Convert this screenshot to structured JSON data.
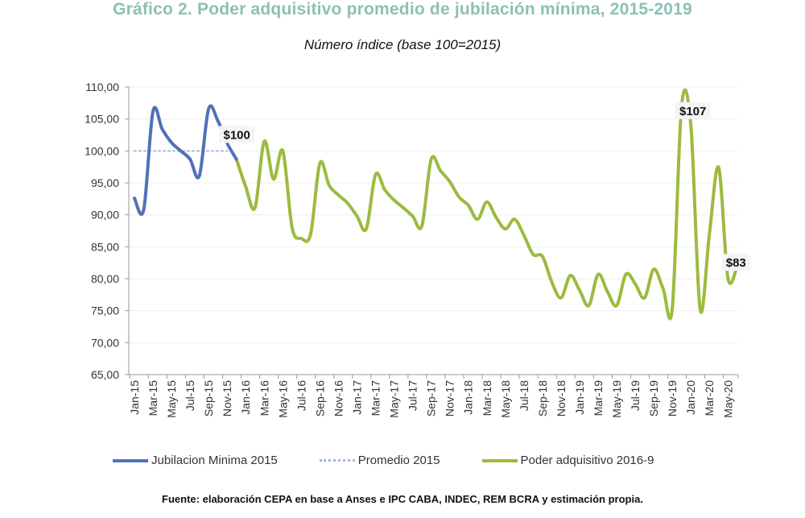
{
  "title": "Gráfico 2. Poder adquisitivo promedio de jubilación mínima, 2015-2019",
  "subtitle": "Número índice (base 100=2015)",
  "source": "Fuente: elaboración CEPA en base a Anses e IPC CABA, INDEC, REM BCRA y estimación propia.",
  "chart_data": {
    "type": "line",
    "ylim": [
      65,
      110
    ],
    "yticks": [
      "65,00",
      "70,00",
      "75,00",
      "80,00",
      "85,00",
      "90,00",
      "95,00",
      "100,00",
      "105,00",
      "110,00"
    ],
    "xtick_labels": [
      "Jan-15",
      "Mar-15",
      "May-15",
      "Jul-15",
      "Sep-15",
      "Nov-15",
      "Jan-16",
      "Mar-16",
      "May-16",
      "Jul-16",
      "Sep-16",
      "Nov-16",
      "Jan-17",
      "Mar-17",
      "May-17",
      "Jul-17",
      "Sep-17",
      "Nov-17",
      "Jan-18",
      "Mar-18",
      "May-18",
      "Jul-18",
      "Sep-18",
      "Nov-18",
      "Jan-19",
      "Mar-19",
      "May-19",
      "Jul-19",
      "Sep-19",
      "Nov-19",
      "Jan-20",
      "Mar-20",
      "May-20"
    ],
    "x_start": "Jan-15",
    "grid": true,
    "legend_position": "bottom",
    "series": [
      {
        "name": "Jubilacion Minima 2015",
        "color": "#4f72b8",
        "style": "solid",
        "start_month": 0,
        "values": [
          92.6,
          90.8,
          106.2,
          103.4,
          101.3,
          100.0,
          98.7,
          96.1,
          106.6,
          104.7,
          101.2,
          98.7
        ]
      },
      {
        "name": "Promedio 2015",
        "color": "#9fb8e6",
        "style": "dotted",
        "start_month": 0,
        "values": [
          100,
          100,
          100,
          100,
          100,
          100,
          100,
          100,
          100,
          100,
          100
        ]
      },
      {
        "name": "Poder adquisitivo 2016-9",
        "color": "#9bbb3f",
        "style": "solid",
        "start_month": 11,
        "values": [
          98.7,
          94.4,
          91.1,
          101.5,
          95.6,
          100.0,
          88.0,
          86.3,
          87.0,
          98.1,
          94.6,
          93.1,
          91.8,
          89.8,
          87.8,
          96.3,
          93.9,
          92.3,
          91.1,
          89.8,
          88.3,
          98.7,
          96.9,
          95.2,
          92.8,
          91.5,
          89.3,
          92.0,
          89.6,
          87.8,
          89.3,
          86.8,
          83.8,
          83.5,
          79.5,
          77.0,
          80.5,
          78.2,
          75.8,
          80.7,
          78.0,
          75.8,
          80.7,
          79.2,
          77.0,
          81.5,
          78.5,
          75.4,
          107.0,
          104.0,
          75.2,
          87.0,
          97.4,
          80.1,
          82.0
        ]
      }
    ],
    "annotations": [
      {
        "text": "$100",
        "month": 10,
        "value": 100
      },
      {
        "text": "$107",
        "month": 59,
        "value": 107
      },
      {
        "text": "$83",
        "month": 64,
        "value": 83
      }
    ]
  }
}
